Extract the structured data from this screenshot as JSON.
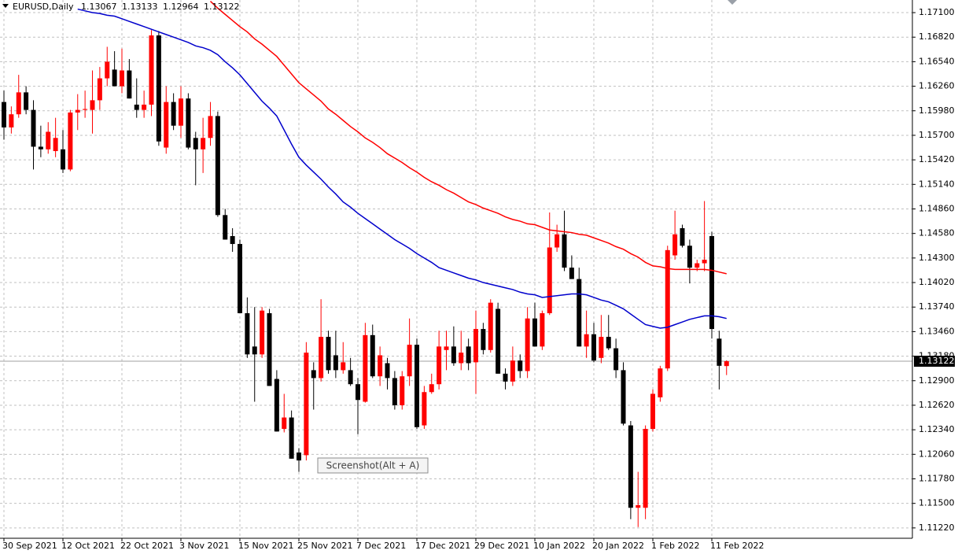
{
  "chart_data": {
    "type": "candlestick",
    "title": "EURUSD,Daily",
    "categories": [
      "30 Sep 2021",
      null,
      null,
      null,
      null,
      null,
      null,
      null,
      "12 Oct 2021",
      null,
      null,
      null,
      null,
      null,
      null,
      null,
      "22 Oct 2021",
      null,
      null,
      null,
      null,
      null,
      null,
      null,
      "3 Nov 2021",
      null,
      null,
      null,
      null,
      null,
      null,
      null,
      "15 Nov 2021",
      null,
      null,
      null,
      null,
      null,
      null,
      null,
      "25 Nov 2021",
      null,
      null,
      null,
      null,
      null,
      null,
      null,
      "7 Dec 2021",
      null,
      null,
      null,
      null,
      null,
      null,
      null,
      "17 Dec 2021",
      null,
      null,
      null,
      null,
      null,
      null,
      null,
      "29 Dec 2021",
      null,
      null,
      null,
      null,
      null,
      null,
      null,
      "10 Jan 2022",
      null,
      null,
      null,
      null,
      null,
      null,
      null,
      "20 Jan 2022",
      null,
      null,
      null,
      null,
      null,
      null,
      null,
      "1 Feb 2022",
      null,
      null,
      null,
      null,
      null,
      null,
      null,
      "11 Feb 2022",
      null,
      null
    ],
    "open": [
      1.1608,
      1.1579,
      1.1594,
      1.1619,
      1.1599,
      1.1557,
      1.1554,
      1.1552,
      1.1554,
      1.1531,
      1.1596,
      1.1599,
      1.1599,
      1.161,
      1.1635,
      1.1645,
      1.1626,
      1.1644,
      1.1605,
      1.1599,
      1.1605,
      1.1684,
      1.1556,
      1.1608,
      1.1581,
      1.1612,
      1.1567,
      1.1554,
      1.1567,
      1.1592,
      1.1479,
      1.1455,
      1.1446,
      1.1367,
      1.1329,
      1.132,
      1.1367,
      1.1292,
      1.1235,
      1.1248,
      1.1208,
      1.1205,
      1.1302,
      1.1293,
      1.134,
      1.1319,
      1.1302,
      1.1302,
      1.1286,
      1.1266,
      1.1342,
      1.1295,
      1.131,
      1.1293,
      1.1262,
      1.1295,
      1.1331,
      1.1239,
      1.1277,
      1.1286,
      1.1325,
      1.1329,
      1.131,
      1.1329,
      1.1311,
      1.1349,
      1.1325,
      1.1372,
      1.1298,
      1.1289,
      1.1313,
      1.1301,
      1.1361,
      1.1329,
      1.1367,
      1.1442,
      1.1457,
      1.1419,
      1.1406,
      1.1329,
      1.1343,
      1.1316,
      1.134,
      1.1327,
      1.1302,
      1.1239,
      1.1145,
      1.1145,
      1.1235,
      1.1271,
      1.1304,
      1.1433,
      1.1464,
      1.1444,
      1.1419,
      1.1424,
      1.1455,
      1.1338,
      1.13067
    ],
    "high": [
      1.1621,
      1.1603,
      1.1639,
      1.1626,
      1.161,
      1.1581,
      1.1585,
      1.159,
      1.1576,
      1.1599,
      1.1617,
      1.1621,
      1.1644,
      1.1648,
      1.1671,
      1.1666,
      1.1669,
      1.1657,
      1.1635,
      1.1621,
      1.169,
      1.1689,
      1.1626,
      1.1618,
      1.1626,
      1.1618,
      1.1574,
      1.159,
      1.1608,
      1.1597,
      1.1486,
      1.1464,
      1.1451,
      1.1385,
      1.1374,
      1.1374,
      1.1372,
      1.1302,
      1.1275,
      1.1256,
      1.1213,
      1.1334,
      1.1311,
      1.1383,
      1.1347,
      1.1347,
      1.1334,
      1.1316,
      1.1293,
      1.1356,
      1.1354,
      1.1329,
      1.1316,
      1.1301,
      1.1301,
      1.1361,
      1.1338,
      1.1284,
      1.1298,
      1.1347,
      1.1347,
      1.1352,
      1.1347,
      1.1338,
      1.137,
      1.1356,
      1.1383,
      1.1379,
      1.1304,
      1.1329,
      1.132,
      1.1374,
      1.1379,
      1.137,
      1.1482,
      1.1468,
      1.1484,
      1.1433,
      1.1419,
      1.137,
      1.1356,
      1.1365,
      1.1365,
      1.1338,
      1.1311,
      1.1244,
      1.1186,
      1.1239,
      1.128,
      1.1307,
      1.1444,
      1.1484,
      1.1468,
      1.1451,
      1.1428,
      1.1495,
      1.146,
      1.1347,
      1.13133
    ],
    "low": [
      1.1565,
      1.1572,
      1.159,
      1.1594,
      1.1531,
      1.1545,
      1.1549,
      1.1545,
      1.1527,
      1.1529,
      1.1576,
      1.159,
      1.1572,
      1.1599,
      1.1626,
      1.1626,
      1.1618,
      1.1612,
      1.159,
      1.159,
      1.1592,
      1.1558,
      1.1549,
      1.1576,
      1.1567,
      1.1554,
      1.1513,
      1.1527,
      1.1558,
      1.1477,
      1.1451,
      1.1437,
      1.1367,
      1.1316,
      1.1266,
      1.1316,
      1.1284,
      1.1232,
      1.1231,
      1.1201,
      1.1186,
      1.1199,
      1.1257,
      1.1289,
      1.1298,
      1.1293,
      1.1298,
      1.1284,
      1.1229,
      1.1265,
      1.1293,
      1.1284,
      1.128,
      1.1257,
      1.1257,
      1.1284,
      1.1235,
      1.1235,
      1.1275,
      1.128,
      1.1302,
      1.1307,
      1.1302,
      1.1302,
      1.1275,
      1.132,
      1.1322,
      1.1298,
      1.128,
      1.1284,
      1.1293,
      1.1293,
      1.1329,
      1.1325,
      1.1365,
      1.1437,
      1.1415,
      1.1406,
      1.1329,
      1.1316,
      1.1311,
      1.131,
      1.1325,
      1.1293,
      1.1239,
      1.1132,
      1.1123,
      1.1132,
      1.1232,
      1.1266,
      1.1301,
      1.1428,
      1.1442,
      1.1401,
      1.1415,
      1.1415,
      1.1338,
      1.128,
      1.12964
    ],
    "close": [
      1.1579,
      1.1594,
      1.1619,
      1.1599,
      1.1557,
      1.1554,
      1.1574,
      1.1567,
      1.1531,
      1.1596,
      1.1599,
      1.16,
      1.161,
      1.1635,
      1.1654,
      1.1626,
      1.1644,
      1.1612,
      1.1599,
      1.1605,
      1.1684,
      1.1563,
      1.1608,
      1.1581,
      1.1612,
      1.1556,
      1.1554,
      1.1567,
      1.1592,
      1.1479,
      1.1451,
      1.1446,
      1.1367,
      1.132,
      1.132,
      1.137,
      1.1284,
      1.1232,
      1.1248,
      1.1201,
      1.1199,
      1.1322,
      1.1293,
      1.134,
      1.1302,
      1.1302,
      1.1311,
      1.1286,
      1.1268,
      1.1342,
      1.1295,
      1.1319,
      1.1293,
      1.1262,
      1.1295,
      1.1331,
      1.1237,
      1.1277,
      1.1286,
      1.1329,
      1.1329,
      1.131,
      1.1322,
      1.131,
      1.1349,
      1.1325,
      1.1379,
      1.1298,
      1.1289,
      1.1313,
      1.1301,
      1.1361,
      1.1329,
      1.1367,
      1.1442,
      1.1457,
      1.1419,
      1.1406,
      1.1329,
      1.1343,
      1.1313,
      1.134,
      1.1327,
      1.1302,
      1.1241,
      1.1145,
      1.1148,
      1.1235,
      1.1275,
      1.1304,
      1.1439,
      1.1457,
      1.1444,
      1.1419,
      1.1424,
      1.1428,
      1.1349,
      1.1307,
      1.13122
    ],
    "up_color": "#ff0000",
    "down_color": "#000000",
    "moving_averages": [
      {
        "color": "#ff0000",
        "values": [
          null,
          null,
          null,
          null,
          null,
          null,
          null,
          null,
          null,
          null,
          null,
          null,
          null,
          null,
          null,
          null,
          null,
          null,
          null,
          null,
          null,
          null,
          null,
          null,
          null,
          null,
          null,
          null,
          1.1723,
          1.1715,
          1.1708,
          1.1701,
          1.1694,
          1.1688,
          1.168,
          1.1674,
          1.1667,
          1.166,
          1.165,
          1.164,
          1.163,
          1.1623,
          1.1616,
          1.1609,
          1.16,
          1.1594,
          1.1587,
          1.158,
          1.1574,
          1.1567,
          1.1562,
          1.1556,
          1.1549,
          1.1544,
          1.1539,
          1.1533,
          1.1528,
          1.1522,
          1.1517,
          1.1513,
          1.1508,
          1.1504,
          1.1499,
          1.1494,
          1.1491,
          1.1487,
          1.1484,
          1.1481,
          1.1477,
          1.1474,
          1.1472,
          1.1469,
          1.1468,
          1.1465,
          1.1462,
          1.1461,
          1.146,
          1.1459,
          1.1457,
          1.1456,
          1.1453,
          1.145,
          1.1447,
          1.1443,
          1.144,
          1.1435,
          1.1431,
          1.1425,
          1.1421,
          1.142,
          1.1418,
          1.1417,
          1.1417,
          1.1417,
          1.1417,
          1.1417,
          1.1416,
          1.1414,
          1.1412
        ]
      },
      {
        "color": "#0000cc",
        "values": [
          null,
          null,
          null,
          null,
          null,
          null,
          null,
          null,
          null,
          null,
          1.1714,
          1.1712,
          1.171,
          1.1709,
          1.1707,
          1.1706,
          1.1703,
          1.17,
          1.1697,
          1.1694,
          1.1691,
          1.1688,
          1.1685,
          1.1682,
          1.1679,
          1.1676,
          1.1672,
          1.167,
          1.1667,
          1.1662,
          1.1654,
          1.1647,
          1.1639,
          1.1629,
          1.1619,
          1.1609,
          1.1601,
          1.1592,
          1.1576,
          1.156,
          1.1545,
          1.1536,
          1.1528,
          1.152,
          1.1511,
          1.1503,
          1.1494,
          1.1488,
          1.1481,
          1.1475,
          1.1469,
          1.1463,
          1.1457,
          1.1451,
          1.1446,
          1.1441,
          1.1435,
          1.143,
          1.1425,
          1.1419,
          1.1416,
          1.1413,
          1.141,
          1.1407,
          1.1405,
          1.1402,
          1.14,
          1.1398,
          1.1396,
          1.1394,
          1.1391,
          1.1389,
          1.1388,
          1.1385,
          1.1386,
          1.1387,
          1.1388,
          1.1389,
          1.1389,
          1.1388,
          1.1385,
          1.1382,
          1.138,
          1.1376,
          1.1372,
          1.1366,
          1.136,
          1.1354,
          1.1352,
          1.135,
          1.1351,
          1.1354,
          1.1357,
          1.136,
          1.1362,
          1.1364,
          1.1364,
          1.1363,
          1.1361
        ]
      }
    ],
    "price_line": {
      "value": 1.13122,
      "label": "1.13122"
    },
    "ylim": [
      1.11102,
      1.17244
    ],
    "yticks": [
      {
        "value": 1.171,
        "label": "1.17100"
      },
      {
        "value": 1.1682,
        "label": "1.16820"
      },
      {
        "value": 1.1654,
        "label": "1.16540"
      },
      {
        "value": 1.1626,
        "label": "1.16260"
      },
      {
        "value": 1.1598,
        "label": "1.15980"
      },
      {
        "value": 1.157,
        "label": "1.15700"
      },
      {
        "value": 1.1542,
        "label": "1.15420"
      },
      {
        "value": 1.1514,
        "label": "1.15140"
      },
      {
        "value": 1.1486,
        "label": "1.14860"
      },
      {
        "value": 1.1458,
        "label": "1.14580"
      },
      {
        "value": 1.143,
        "label": "1.14300"
      },
      {
        "value": 1.1402,
        "label": "1.14020"
      },
      {
        "value": 1.1374,
        "label": "1.13740"
      },
      {
        "value": 1.1346,
        "label": "1.13460"
      },
      {
        "value": 1.1318,
        "label": "1.13180"
      },
      {
        "value": 1.129,
        "label": "1.12900"
      },
      {
        "value": 1.1262,
        "label": "1.12620"
      },
      {
        "value": 1.1234,
        "label": "1.12340"
      },
      {
        "value": 1.1206,
        "label": "1.12060"
      },
      {
        "value": 1.1178,
        "label": "1.11780"
      },
      {
        "value": 1.115,
        "label": "1.11500"
      },
      {
        "value": 1.1122,
        "label": "1.11220"
      }
    ],
    "grid": true,
    "tooltip": "Screenshot(Alt + A)"
  }
}
